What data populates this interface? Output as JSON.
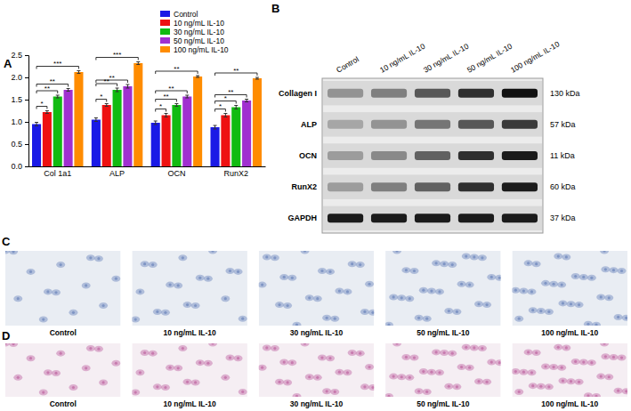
{
  "chart_data": {
    "type": "bar",
    "panel": "A",
    "categories": [
      "Col 1a1",
      "ALP",
      "OCN",
      "RunX2"
    ],
    "series": [
      {
        "name": "Control",
        "color": "#1a1ae6",
        "values": [
          0.95,
          1.05,
          0.98,
          0.88
        ],
        "errors": [
          0.04,
          0.04,
          0.04,
          0.04
        ]
      },
      {
        "name": "10 ng/mL IL-10",
        "color": "#ee1111",
        "values": [
          1.22,
          1.38,
          1.15,
          1.15
        ],
        "errors": [
          0.03,
          0.03,
          0.04,
          0.04
        ]
      },
      {
        "name": "30 ng/mL IL-10",
        "color": "#11bb11",
        "values": [
          1.57,
          1.72,
          1.38,
          1.33
        ],
        "errors": [
          0.03,
          0.04,
          0.03,
          0.04
        ]
      },
      {
        "name": "50 ng/mL IL-10",
        "color": "#a030d0",
        "values": [
          1.72,
          1.8,
          1.57,
          1.48
        ],
        "errors": [
          0.03,
          0.04,
          0.03,
          0.03
        ]
      },
      {
        "name": "100 ng/mL IL-10",
        "color": "#ff8c00",
        "values": [
          2.12,
          2.32,
          2.02,
          1.98
        ],
        "errors": [
          0.03,
          0.03,
          0.02,
          0.02
        ]
      }
    ],
    "annotations": [
      [
        "*",
        "**",
        "**",
        "***"
      ],
      [
        "*",
        "**",
        "**",
        "***"
      ],
      [
        "*",
        "**",
        "**",
        "**"
      ],
      [
        "*",
        "*",
        "**",
        "**"
      ]
    ],
    "ylim": [
      0,
      2.5
    ],
    "yticks": [
      {
        "value": 0,
        "label": "0.0"
      },
      0.5,
      {
        "value": 1,
        "label": "1.0"
      },
      1.5,
      {
        "value": 2,
        "label": "2.0"
      },
      2.5
    ],
    "legend": "top-right"
  },
  "blot": {
    "panel": "B",
    "lanes": [
      "Control",
      "10 ng/mL IL-10",
      "30 ng/mL IL-10",
      "50 ng/mL IL-10",
      "100 ng/mL IL-10"
    ],
    "rows": [
      {
        "name": "Collagen I",
        "size": "130 kDa",
        "intensity": [
          0.35,
          0.45,
          0.65,
          0.85,
          1.0
        ]
      },
      {
        "name": "ALP",
        "size": "57 kDa",
        "intensity": [
          0.25,
          0.35,
          0.5,
          0.65,
          0.8
        ]
      },
      {
        "name": "OCN",
        "size": "11 kDa",
        "intensity": [
          0.3,
          0.4,
          0.6,
          0.85,
          0.95
        ]
      },
      {
        "name": "RunX2",
        "size": "60 kDa",
        "intensity": [
          0.3,
          0.45,
          0.6,
          0.85,
          0.95
        ]
      },
      {
        "name": "GAPDH",
        "size": "37 kDa",
        "intensity": [
          0.95,
          0.95,
          0.95,
          0.95,
          0.95
        ]
      }
    ]
  },
  "micrographs": [
    {
      "panel": "C",
      "color": "#7f95c4",
      "captions": [
        "Control",
        "10 ng/mL IL-10",
        "30 ng/mL IL-10",
        "50 ng/mL IL-10",
        "100 ng/mL IL-10"
      ]
    },
    {
      "panel": "D",
      "color": "#c77aae",
      "captions": [
        "Control",
        "10 ng/mL IL-10",
        "30 ng/mL IL-10",
        "50 ng/mL IL-10",
        "100 ng/mL IL-10"
      ]
    }
  ]
}
